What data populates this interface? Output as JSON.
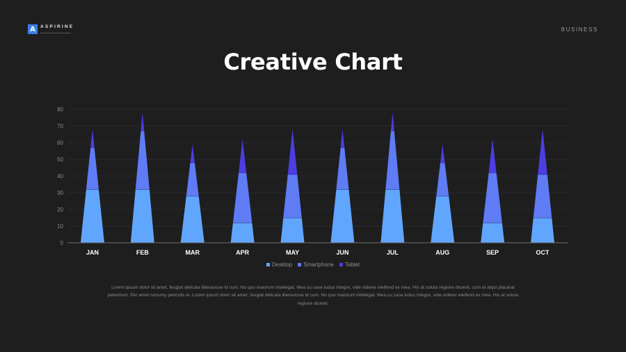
{
  "brand": {
    "name": "ASPIRINE",
    "mark": "A"
  },
  "section_label": "BUSINESS",
  "title": "Creative Chart",
  "chart_data": {
    "type": "area",
    "stacked": true,
    "categories": [
      "JAN",
      "FEB",
      "MAR",
      "APR",
      "MAY",
      "JUN",
      "JUL",
      "AUG",
      "SEP",
      "OCT"
    ],
    "series": [
      {
        "name": "Desktop",
        "values": [
          32,
          32,
          28,
          12,
          15,
          32,
          32,
          28,
          12,
          15
        ]
      },
      {
        "name": "Smartphone",
        "values": [
          25,
          35,
          20,
          30,
          26,
          25,
          35,
          20,
          30,
          26
        ]
      },
      {
        "name": "Tablet",
        "values": [
          11,
          11,
          11,
          20,
          27,
          11,
          11,
          11,
          20,
          27
        ]
      }
    ],
    "yticks": [
      0,
      10,
      20,
      30,
      40,
      50,
      60,
      70,
      80
    ],
    "ylim": [
      0,
      80
    ],
    "grid": true,
    "legend_position": "bottom",
    "colors": [
      "#61a6fe",
      "#5f7cf5",
      "#4c3ee3"
    ]
  },
  "legend": [
    {
      "label": "Desktop",
      "color": "#61a6fe"
    },
    {
      "label": "Smartphone",
      "color": "#5f7cf5"
    },
    {
      "label": "Tablet",
      "color": "#4c3ee3"
    }
  ],
  "body_text": "Lorem ipsum dolor sit amet, feugiat delicata liberavisse id cum. No quo maiorum intellegat. Mea cu case ludus integre, vide viderer eleifend ex mea. His at soluta regione diceret, cum et atqui placerat petentium. Per amet nonumy periculis ei. Lorem ipsum dolor sit amet, feugiat delicata liberavisse id cum. No quo maiorum intellegat. Mea cu case ludus integre, vide viderer eleifend ex mea. His at soluta regione diceret."
}
